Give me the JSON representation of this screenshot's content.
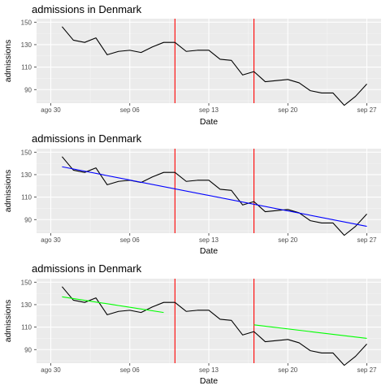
{
  "chart_data": [
    {
      "type": "line",
      "title": "admissions in Denmark",
      "xlabel": "Date",
      "ylabel": "admissions",
      "x_ticks": [
        "ago 30",
        "sep 06",
        "sep 13",
        "sep 20",
        "sep 27"
      ],
      "y_ticks": [
        90,
        110,
        130,
        150
      ],
      "xlim": [
        "2020-08-30",
        "2020-09-27"
      ],
      "ylim": [
        81,
        150
      ],
      "grid": true,
      "series": [
        {
          "color": "#000000",
          "x": [
            "2020-08-31",
            "2020-09-01",
            "2020-09-02",
            "2020-09-03",
            "2020-09-04",
            "2020-09-05",
            "2020-09-06",
            "2020-09-07",
            "2020-09-08",
            "2020-09-09",
            "2020-09-10",
            "2020-09-11",
            "2020-09-12",
            "2020-09-13",
            "2020-09-14",
            "2020-09-15",
            "2020-09-16",
            "2020-09-17",
            "2020-09-18",
            "2020-09-19",
            "2020-09-20",
            "2020-09-21",
            "2020-09-22",
            "2020-09-23",
            "2020-09-24",
            "2020-09-25",
            "2020-09-26",
            "2020-09-27"
          ],
          "y": [
            146,
            134,
            132,
            136,
            121,
            124,
            125,
            123,
            128,
            132,
            132,
            124,
            125,
            125,
            117,
            116,
            103,
            106,
            97,
            98,
            99,
            96,
            89,
            87,
            87,
            76,
            84,
            95
          ]
        }
      ],
      "vlines": [
        {
          "x": "2020-09-10",
          "color": "#ff0000"
        },
        {
          "x": "2020-09-17",
          "color": "#ff0000"
        }
      ],
      "fit_lines": []
    },
    {
      "type": "line",
      "title": "admissions in Denmark",
      "xlabel": "Date",
      "ylabel": "admissions",
      "x_ticks": [
        "ago 30",
        "sep 06",
        "sep 13",
        "sep 20",
        "sep 27"
      ],
      "y_ticks": [
        90,
        110,
        130,
        150
      ],
      "xlim": [
        "2020-08-30",
        "2020-09-27"
      ],
      "ylim": [
        81,
        150
      ],
      "grid": true,
      "series": [
        {
          "color": "#000000",
          "x": [
            "2020-08-31",
            "2020-09-01",
            "2020-09-02",
            "2020-09-03",
            "2020-09-04",
            "2020-09-05",
            "2020-09-06",
            "2020-09-07",
            "2020-09-08",
            "2020-09-09",
            "2020-09-10",
            "2020-09-11",
            "2020-09-12",
            "2020-09-13",
            "2020-09-14",
            "2020-09-15",
            "2020-09-16",
            "2020-09-17",
            "2020-09-18",
            "2020-09-19",
            "2020-09-20",
            "2020-09-21",
            "2020-09-22",
            "2020-09-23",
            "2020-09-24",
            "2020-09-25",
            "2020-09-26",
            "2020-09-27"
          ],
          "y": [
            146,
            134,
            132,
            136,
            121,
            124,
            125,
            123,
            128,
            132,
            132,
            124,
            125,
            125,
            117,
            116,
            103,
            106,
            97,
            98,
            99,
            96,
            89,
            87,
            87,
            76,
            84,
            95
          ]
        }
      ],
      "vlines": [
        {
          "x": "2020-09-10",
          "color": "#ff0000"
        },
        {
          "x": "2020-09-17",
          "color": "#ff0000"
        }
      ],
      "fit_lines": [
        {
          "color": "#0000ff",
          "x": [
            "2020-08-31",
            "2020-09-27"
          ],
          "y": [
            137,
            84
          ]
        }
      ]
    },
    {
      "type": "line",
      "title": "admissions in Denmark",
      "xlabel": "Date",
      "ylabel": "admissions",
      "x_ticks": [
        "ago 30",
        "sep 06",
        "sep 13",
        "sep 20",
        "sep 27"
      ],
      "y_ticks": [
        90,
        110,
        130,
        150
      ],
      "xlim": [
        "2020-08-30",
        "2020-09-27"
      ],
      "ylim": [
        81,
        150
      ],
      "grid": true,
      "series": [
        {
          "color": "#000000",
          "x": [
            "2020-08-31",
            "2020-09-01",
            "2020-09-02",
            "2020-09-03",
            "2020-09-04",
            "2020-09-05",
            "2020-09-06",
            "2020-09-07",
            "2020-09-08",
            "2020-09-09",
            "2020-09-10",
            "2020-09-11",
            "2020-09-12",
            "2020-09-13",
            "2020-09-14",
            "2020-09-15",
            "2020-09-16",
            "2020-09-17",
            "2020-09-18",
            "2020-09-19",
            "2020-09-20",
            "2020-09-21",
            "2020-09-22",
            "2020-09-23",
            "2020-09-24",
            "2020-09-25",
            "2020-09-26",
            "2020-09-27"
          ],
          "y": [
            146,
            134,
            132,
            136,
            121,
            124,
            125,
            123,
            128,
            132,
            132,
            124,
            125,
            125,
            117,
            116,
            103,
            106,
            97,
            98,
            99,
            96,
            89,
            87,
            87,
            76,
            84,
            95
          ]
        }
      ],
      "vlines": [
        {
          "x": "2020-09-10",
          "color": "#ff0000"
        },
        {
          "x": "2020-09-17",
          "color": "#ff0000"
        }
      ],
      "fit_lines": [
        {
          "color": "#00ff00",
          "x": [
            "2020-08-31",
            "2020-09-09"
          ],
          "y": [
            137,
            123
          ]
        },
        {
          "color": "#00ff00",
          "x": [
            "2020-09-17",
            "2020-09-27"
          ],
          "y": [
            112,
            100
          ]
        }
      ]
    }
  ]
}
